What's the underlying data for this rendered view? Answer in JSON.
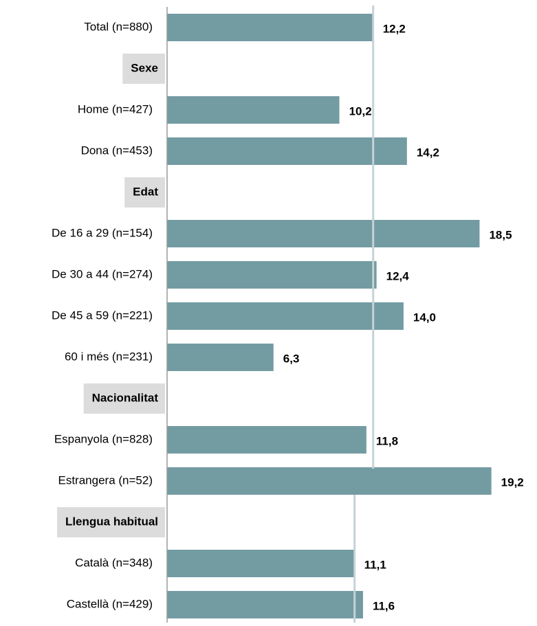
{
  "chart_data": {
    "type": "bar",
    "categories": [
      "Total (n=880)",
      "Sexe",
      "Home (n=427)",
      "Dona (n=453)",
      "Edat",
      "De 16 a 29 (n=154)",
      "De 30 a 44 (n=274)",
      "De 45 a 59 (n=221)",
      "60 i més (n=231)",
      "Nacionalitat",
      "Espanyola (n=828)",
      "Estrangera (n=52)",
      "Llengua habitual",
      "Català (n=348)",
      "Castellà (n=429)"
    ],
    "values": [
      12.2,
      null,
      10.2,
      14.2,
      null,
      18.5,
      12.4,
      14.0,
      6.3,
      null,
      11.8,
      19.2,
      null,
      11.1,
      11.6
    ],
    "value_labels": [
      "12,2",
      null,
      "10,2",
      "14,2",
      null,
      "18,5",
      "12,4",
      "14,0",
      "6,3",
      null,
      "11,8",
      "19,2",
      null,
      "11,1",
      "11,6"
    ],
    "color": "#739ba2",
    "xlim": [
      0,
      21.9
    ],
    "reference_lines": [
      {
        "value": 12.2
      },
      {
        "value": 11.1
      }
    ]
  }
}
